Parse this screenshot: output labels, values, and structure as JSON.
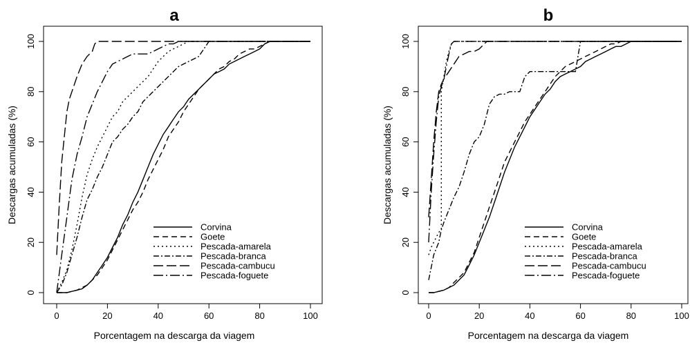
{
  "chart_data": [
    {
      "type": "line",
      "title": "a",
      "xlabel": "Porcentagem na descarga da viagem",
      "ylabel": "Descargas acumuladas (%)",
      "xlim": [
        0,
        100
      ],
      "ylim": [
        0,
        100
      ],
      "xticks": [
        "0",
        "20",
        "40",
        "60",
        "80",
        "100"
      ],
      "yticks": [
        "0",
        "20",
        "40",
        "60",
        "80",
        "100"
      ],
      "legend_position": "bottom-right",
      "grid": false,
      "series": [
        {
          "name": "Corvina",
          "dash": "solid",
          "x": [
            0,
            4,
            6,
            8,
            10,
            12,
            14,
            16,
            18,
            20,
            22,
            24,
            26,
            28,
            30,
            32,
            34,
            36,
            38,
            40,
            42,
            44,
            46,
            48,
            50,
            52,
            54,
            56,
            58,
            60,
            62,
            64,
            66,
            68,
            70,
            72,
            74,
            76,
            78,
            80,
            82,
            84,
            100
          ],
          "y": [
            0,
            0,
            0.5,
            1,
            1.5,
            3,
            5,
            8,
            11,
            14,
            18,
            22,
            27,
            31,
            36,
            40,
            45,
            50,
            55,
            59,
            63,
            66,
            69,
            72,
            74,
            77,
            79,
            81,
            83,
            85,
            87,
            88,
            89,
            91,
            92,
            93,
            94,
            95,
            96,
            97,
            99,
            100,
            100
          ]
        },
        {
          "name": "Goete",
          "dash": "dashed",
          "x": [
            0,
            4,
            6,
            8,
            10,
            12,
            14,
            16,
            18,
            20,
            22,
            24,
            26,
            28,
            30,
            32,
            34,
            36,
            38,
            40,
            42,
            44,
            46,
            48,
            50,
            52,
            54,
            56,
            58,
            60,
            62,
            64,
            66,
            68,
            70,
            72,
            74,
            76,
            78,
            80,
            82,
            84,
            100
          ],
          "y": [
            0,
            0,
            0.5,
            1,
            2,
            3,
            5,
            7,
            10,
            13,
            17,
            21,
            25,
            29,
            33,
            36,
            40,
            45,
            49,
            53,
            57,
            62,
            65,
            68,
            72,
            75,
            78,
            81,
            83,
            85,
            87,
            89,
            90,
            92,
            93,
            95,
            96,
            97,
            97,
            98,
            99,
            100,
            100
          ]
        },
        {
          "name": "Pescada-amarela",
          "dash": "dotted",
          "x": [
            0,
            2,
            4,
            6,
            8,
            10,
            12,
            14,
            16,
            18,
            20,
            22,
            24,
            26,
            28,
            30,
            32,
            34,
            36,
            38,
            40,
            42,
            44,
            46,
            48,
            50,
            52,
            100
          ],
          "y": [
            0,
            4,
            9,
            17,
            27,
            38,
            47,
            53,
            58,
            62,
            66,
            70,
            72,
            76,
            78,
            80,
            82,
            84,
            86,
            89,
            92,
            94,
            96,
            97,
            98,
            99,
            100,
            100
          ]
        },
        {
          "name": "Pescada-branca",
          "dash": "dash-dot",
          "x": [
            0,
            2,
            4,
            6,
            8,
            10,
            12,
            14,
            16,
            18,
            20,
            22,
            24,
            26,
            28,
            30,
            32,
            34,
            36,
            38,
            40,
            42,
            44,
            46,
            48,
            50,
            52,
            54,
            56,
            58,
            60,
            100
          ],
          "y": [
            0,
            3,
            8,
            15,
            22,
            30,
            37,
            41,
            46,
            50,
            55,
            60,
            62,
            65,
            67,
            70,
            72,
            76,
            78,
            80,
            82,
            84,
            86,
            88,
            90,
            91,
            92,
            93,
            94,
            97,
            100,
            100
          ]
        },
        {
          "name": "Pescada-cambucu",
          "dash": "long-dash",
          "x": [
            0,
            1,
            2,
            3,
            4,
            5,
            6,
            7,
            8,
            10,
            12,
            14,
            15,
            16,
            100
          ],
          "y": [
            15,
            35,
            52,
            62,
            72,
            77,
            80,
            83,
            86,
            91,
            94,
            96,
            99,
            100,
            100
          ]
        },
        {
          "name": "Pescada-foguete",
          "dash": "long-dash-dot",
          "x": [
            0,
            2,
            4,
            6,
            8,
            10,
            12,
            14,
            16,
            18,
            20,
            22,
            24,
            26,
            28,
            30,
            32,
            34,
            36,
            38,
            40,
            42,
            44,
            46,
            48,
            50,
            52,
            54,
            56,
            58,
            60,
            100
          ],
          "y": [
            0,
            15,
            30,
            45,
            55,
            62,
            70,
            75,
            80,
            84,
            88,
            91,
            92,
            93,
            94,
            95,
            95,
            95,
            95,
            96,
            97,
            98,
            99,
            99,
            100,
            100,
            100,
            100,
            100,
            100,
            100,
            100
          ]
        }
      ]
    },
    {
      "type": "line",
      "title": "b",
      "xlabel": "Porcentagem na descarga da viagem",
      "ylabel": "Descargas acumuladas (%)",
      "xlim": [
        0,
        100
      ],
      "ylim": [
        0,
        100
      ],
      "xticks": [
        "0",
        "20",
        "40",
        "60",
        "80",
        "100"
      ],
      "yticks": [
        "0",
        "20",
        "40",
        "60",
        "80",
        "100"
      ],
      "legend_position": "bottom-right",
      "grid": false,
      "series": [
        {
          "name": "Corvina",
          "dash": "solid",
          "x": [
            0,
            2,
            4,
            6,
            8,
            10,
            12,
            14,
            16,
            18,
            20,
            22,
            24,
            26,
            28,
            30,
            32,
            34,
            36,
            38,
            40,
            42,
            44,
            46,
            48,
            50,
            52,
            54,
            56,
            58,
            60,
            62,
            64,
            66,
            68,
            70,
            72,
            74,
            76,
            78,
            80,
            100
          ],
          "y": [
            0,
            0,
            0.5,
            1,
            2,
            3,
            5,
            7,
            11,
            15,
            20,
            25,
            30,
            36,
            42,
            48,
            53,
            58,
            62,
            66,
            70,
            73,
            76,
            79,
            81,
            84,
            86,
            87,
            88,
            89,
            90,
            92,
            93,
            94,
            95,
            96,
            97,
            98,
            98,
            99,
            100,
            100
          ]
        },
        {
          "name": "Goete",
          "dash": "dashed",
          "x": [
            0,
            2,
            4,
            6,
            8,
            10,
            12,
            14,
            16,
            18,
            20,
            22,
            24,
            26,
            28,
            30,
            32,
            34,
            36,
            38,
            40,
            42,
            44,
            46,
            48,
            50,
            52,
            54,
            56,
            58,
            60,
            62,
            64,
            66,
            68,
            70,
            72,
            74,
            76,
            100
          ],
          "y": [
            0,
            0,
            0.5,
            1,
            2,
            4,
            6,
            8,
            12,
            16,
            22,
            28,
            34,
            40,
            46,
            52,
            56,
            60,
            64,
            68,
            71,
            74,
            77,
            80,
            83,
            86,
            88,
            90,
            91,
            92,
            93,
            94,
            95,
            96,
            97,
            98,
            99,
            99,
            100,
            100
          ]
        },
        {
          "name": "Pescada-amarela",
          "dash": "dotted",
          "x": [
            0,
            1,
            2,
            3,
            4,
            5,
            5.01,
            6,
            7,
            8,
            9,
            10,
            100
          ],
          "y": [
            15,
            18,
            20,
            22,
            24,
            25,
            80,
            86,
            92,
            96,
            99,
            100,
            100
          ]
        },
        {
          "name": "Pescada-branca",
          "dash": "dash-dot",
          "x": [
            0,
            1,
            2,
            4,
            5,
            6,
            8,
            10,
            12,
            14,
            16,
            18,
            20,
            22,
            24,
            26,
            28,
            30,
            32,
            34,
            36,
            38,
            40,
            42,
            44,
            46,
            48,
            50,
            52,
            54,
            56,
            58,
            60,
            100
          ],
          "y": [
            5,
            10,
            15,
            20,
            25,
            28,
            33,
            38,
            42,
            48,
            55,
            60,
            62,
            67,
            75,
            78,
            79,
            79,
            80,
            80,
            80,
            86,
            88,
            88,
            88,
            88,
            88,
            88,
            88,
            88,
            88,
            88,
            100,
            100
          ]
        },
        {
          "name": "Pescada-cambucu",
          "dash": "long-dash",
          "x": [
            0,
            1,
            2,
            3,
            4,
            5,
            6,
            8,
            10,
            12,
            14,
            16,
            18,
            20,
            22,
            23,
            100
          ],
          "y": [
            30,
            45,
            60,
            72,
            80,
            83,
            85,
            88,
            91,
            94,
            95,
            96,
            96,
            97,
            99,
            100,
            100
          ]
        },
        {
          "name": "Pescada-foguete",
          "dash": "long-dash-dot",
          "x": [
            0,
            1,
            2,
            3,
            4,
            5,
            6,
            7,
            8,
            9,
            10,
            100
          ],
          "y": [
            20,
            40,
            55,
            68,
            78,
            82,
            85,
            90,
            95,
            99,
            100,
            100
          ]
        }
      ]
    }
  ]
}
